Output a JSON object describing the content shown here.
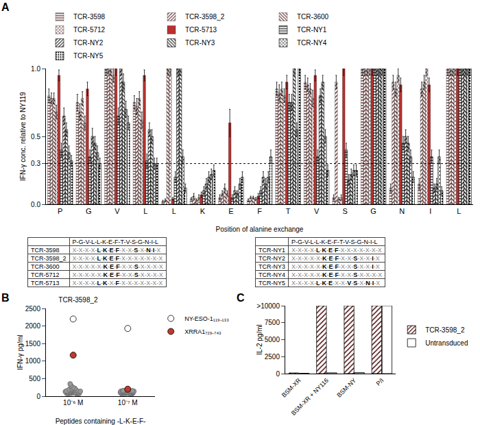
{
  "chart_data": [
    {
      "panel": "A",
      "type": "bar",
      "y_label": "IFN-γ conc. relative to NY119",
      "x_label": "Position of alanine exchange",
      "categories": [
        "P",
        "G",
        "V",
        "L",
        "L",
        "K",
        "E",
        "F",
        "T",
        "V",
        "S",
        "G",
        "N",
        "I",
        "L"
      ],
      "ylim": [
        0,
        1.0
      ],
      "yticks": [
        {
          "value": 0,
          "label": "0.0"
        },
        {
          "value": 0.3,
          "label": "0.3"
        },
        {
          "value": 0.5,
          "label": "0.5"
        },
        {
          "value": 1.0,
          "label": "1.0"
        }
      ],
      "reference_line": 0.3,
      "grid": false,
      "legend": "top",
      "series": [
        {
          "name": "TCR-3598",
          "color": "#b8312f",
          "values": [
            0.8,
            0.75,
            1.0,
            0.75,
            0.02,
            0.04,
            0.05,
            0.03,
            0.85,
            0.9,
            0.05,
            1.0,
            0.12,
            0.15,
            1.0
          ],
          "errors": [
            0.05,
            0.06,
            0.05,
            0.05,
            0.01,
            0.01,
            0.02,
            0.01,
            0.05,
            0.05,
            0.02,
            0.05,
            0.03,
            0.04,
            0.05
          ]
        },
        {
          "name": "TCR-3598_2",
          "color": "#b8312f",
          "values": [
            0.78,
            0.68,
            1.0,
            0.72,
            0.03,
            0.06,
            0.08,
            0.05,
            0.82,
            0.88,
            0.9,
            1.0,
            0.9,
            0.85,
            1.0
          ],
          "errors": [
            0.04,
            0.06,
            0.04,
            0.06,
            0.01,
            0.02,
            0.02,
            0.01,
            0.06,
            0.05,
            0.05,
            0.05,
            0.05,
            0.05,
            0.05
          ]
        },
        {
          "name": "TCR-3600",
          "color": "#b8312f",
          "values": [
            0.78,
            0.78,
            1.0,
            0.78,
            1.0,
            0.03,
            0.12,
            0.05,
            0.85,
            0.85,
            0.04,
            1.0,
            0.85,
            0.9,
            1.0
          ],
          "errors": [
            0.04,
            0.05,
            0.05,
            0.05,
            0.05,
            0.01,
            0.03,
            0.01,
            0.05,
            0.04,
            0.01,
            0.05,
            0.05,
            0.05,
            0.05
          ]
        },
        {
          "name": "TCR-5712",
          "color": "#b8312f",
          "values": [
            0.68,
            0.6,
            0.95,
            0.62,
            1.0,
            0.05,
            0.08,
            0.04,
            0.8,
            0.78,
            0.05,
            1.0,
            0.95,
            1.0,
            1.0
          ],
          "errors": [
            0.05,
            0.05,
            0.05,
            0.06,
            0.05,
            0.02,
            0.02,
            0.01,
            0.05,
            0.06,
            0.02,
            0.05,
            0.05,
            0.05,
            0.05
          ]
        },
        {
          "name": "TCR-5713",
          "color": "#b8312f",
          "values": [
            0.95,
            0.85,
            1.0,
            0.95,
            0.04,
            0.07,
            0.6,
            0.06,
            0.9,
            0.95,
            1.0,
            1.0,
            0.88,
            0.88,
            1.0
          ],
          "errors": [
            0.04,
            0.05,
            0.05,
            0.04,
            0.01,
            0.02,
            0.1,
            0.02,
            0.05,
            0.04,
            0.05,
            0.05,
            0.05,
            0.05,
            0.05
          ]
        },
        {
          "name": "TCR-NY1",
          "color": "#ffffff",
          "values": [
            0.4,
            0.35,
            0.65,
            0.32,
            0.2,
            0.1,
            0.05,
            0.1,
            0.75,
            0.35,
            0.4,
            1.0,
            0.45,
            0.35,
            1.0
          ],
          "errors": [
            0.05,
            0.05,
            0.06,
            0.05,
            0.04,
            0.03,
            0.02,
            0.03,
            0.06,
            0.05,
            0.05,
            0.05,
            0.05,
            0.05,
            0.05
          ]
        },
        {
          "name": "TCR-NY2",
          "color": "#ffffff",
          "values": [
            0.65,
            0.5,
            1.0,
            0.55,
            1.0,
            0.15,
            0.1,
            0.2,
            0.75,
            0.8,
            0.18,
            1.0,
            0.5,
            0.12,
            1.0
          ],
          "errors": [
            0.06,
            0.06,
            0.05,
            0.05,
            0.05,
            0.04,
            0.03,
            0.04,
            0.06,
            0.05,
            0.04,
            0.05,
            0.05,
            0.03,
            0.05
          ]
        },
        {
          "name": "TCR-NY3",
          "color": "#ffffff",
          "values": [
            0.55,
            0.45,
            0.9,
            0.5,
            1.0,
            0.2,
            0.08,
            0.15,
            1.0,
            0.9,
            0.22,
            1.0,
            0.45,
            0.15,
            1.0
          ],
          "errors": [
            0.05,
            0.05,
            0.06,
            0.05,
            0.05,
            0.04,
            0.02,
            0.04,
            0.05,
            0.05,
            0.04,
            0.05,
            0.05,
            0.04,
            0.05
          ]
        },
        {
          "name": "TCR-NY4",
          "color": "#ffffff",
          "values": [
            0.38,
            0.38,
            0.7,
            0.3,
            0.35,
            0.22,
            0.15,
            0.2,
            0.55,
            0.5,
            0.25,
            1.0,
            0.35,
            0.35,
            1.0
          ],
          "errors": [
            0.05,
            0.05,
            0.06,
            0.04,
            0.05,
            0.04,
            0.04,
            0.04,
            0.05,
            0.05,
            0.04,
            0.05,
            0.05,
            0.05,
            0.05
          ]
        },
        {
          "name": "TCR-NY5",
          "color": "#ffffff",
          "values": [
            0.32,
            0.3,
            0.6,
            0.3,
            0.12,
            0.25,
            0.2,
            0.35,
            1.0,
            0.25,
            0.25,
            1.0,
            0.2,
            0.1,
            1.0
          ],
          "errors": [
            0.04,
            0.04,
            0.05,
            0.04,
            0.03,
            0.04,
            0.04,
            0.05,
            0.05,
            0.04,
            0.04,
            0.05,
            0.04,
            0.03,
            0.05
          ]
        }
      ]
    },
    {
      "panel": "B",
      "type": "scatter",
      "title": "TCR-3598_2",
      "y_label": "IFN-γ pg/ml",
      "x_label": "Peptides containing -L-K-E-F-",
      "categories": [
        "10⁻⁶ M",
        "10⁻⁷ M"
      ],
      "ylim": [
        0,
        2500
      ],
      "yticks": [
        0,
        500,
        1000,
        1500,
        2000,
        2500
      ],
      "grid": false,
      "legend": "right",
      "series": [
        {
          "color": "#999999",
          "values": [
            [
              80,
              120,
              150,
              100,
              90,
              200,
              250,
              300,
              350,
              130,
              110,
              140,
              160,
              95,
              85,
              170,
              180,
              220,
              105,
              115,
              125,
              135,
              145,
              60,
              70,
              190,
              210,
              75,
              155,
              165
            ],
            [
              60,
              90,
              120,
              100,
              80,
              150,
              130,
              110,
              140,
              95,
              85,
              170,
              105,
              115,
              125,
              135,
              70,
              160,
              145,
              100,
              90,
              80,
              110,
              120,
              75,
              65,
              155,
              180,
              140,
              130
            ]
          ]
        },
        {
          "name": "NY-ESO-1₁₁₉₋₁₃₃",
          "color": "#ffffff",
          "values": [
            [
              2200
            ],
            [
              1930
            ]
          ]
        },
        {
          "name": "XRRA1₇₂₉₋₇₄₃",
          "color": "#c0392b",
          "values": [
            [
              1170
            ],
            [
              200
            ]
          ]
        }
      ]
    },
    {
      "panel": "C",
      "type": "bar",
      "y_label": "IL-2 pg/ml",
      "categories": [
        "BSM-XR",
        "BSM-XR + NY116",
        "BSM-NY",
        "P/I"
      ],
      "ylim": [
        0,
        10000
      ],
      "yticks": [
        0,
        2500,
        5000,
        7500,
        {
          "value": 10000,
          "label": ">10000"
        }
      ],
      "grid": false,
      "legend": "right",
      "series": [
        {
          "name": "TCR-3598_2",
          "color": "#b8312f",
          "values": [
            100,
            10000,
            10000,
            10000
          ]
        },
        {
          "name": "Untransduced",
          "color": "#ffffff",
          "values": [
            50,
            120,
            150,
            10000
          ]
        }
      ]
    }
  ],
  "tables": [
    {
      "header": "P-G-V-L-L-K-E-F-T-V-S-G-N-I-L",
      "rows": [
        {
          "name": "TCR-3598",
          "pattern": "X-X-X-X-L-K-E-F-X-X-S-X-N-I-X"
        },
        {
          "name": "TCR-3598_2",
          "pattern": "X-X-X-X-L-K-E-F-X-X-X-X-X-X-X"
        },
        {
          "name": "TCR-3600",
          "pattern": "X-X-X-X-X-K-E-F-X-X-S-X-X-X-X"
        },
        {
          "name": "TCR-5712",
          "pattern": "X-X-X-X-X-K-E-F-X-X-S-X-X-X-X"
        },
        {
          "name": "TCR-5713",
          "pattern": "X-X-X-X-L-K-X-F-X-X-X-X-X-X-X"
        }
      ]
    },
    {
      "header": "P-G-V-L-L-K-E-F-T-V-S-G-N-I-L",
      "rows": [
        {
          "name": "TCR-NY1",
          "pattern": "X-X-X-X-L-K-E-F-X-X-X-X-X-X-X"
        },
        {
          "name": "TCR-NY2",
          "pattern": "X-X-X-X-X-K-E-F-X-X-S-X-X-I-X"
        },
        {
          "name": "TCR-NY3",
          "pattern": "X-X-X-X-X-K-E-F-X-X-S-X-X-I-X"
        },
        {
          "name": "TCR-NY4",
          "pattern": "X-X-X-X-X-K-E-F-X-X-S-X-X-X-X"
        },
        {
          "name": "TCR-NY5",
          "pattern": "X-X-X-X-L-K-E-X-X-V-S-X-N-I-X"
        }
      ]
    }
  ]
}
